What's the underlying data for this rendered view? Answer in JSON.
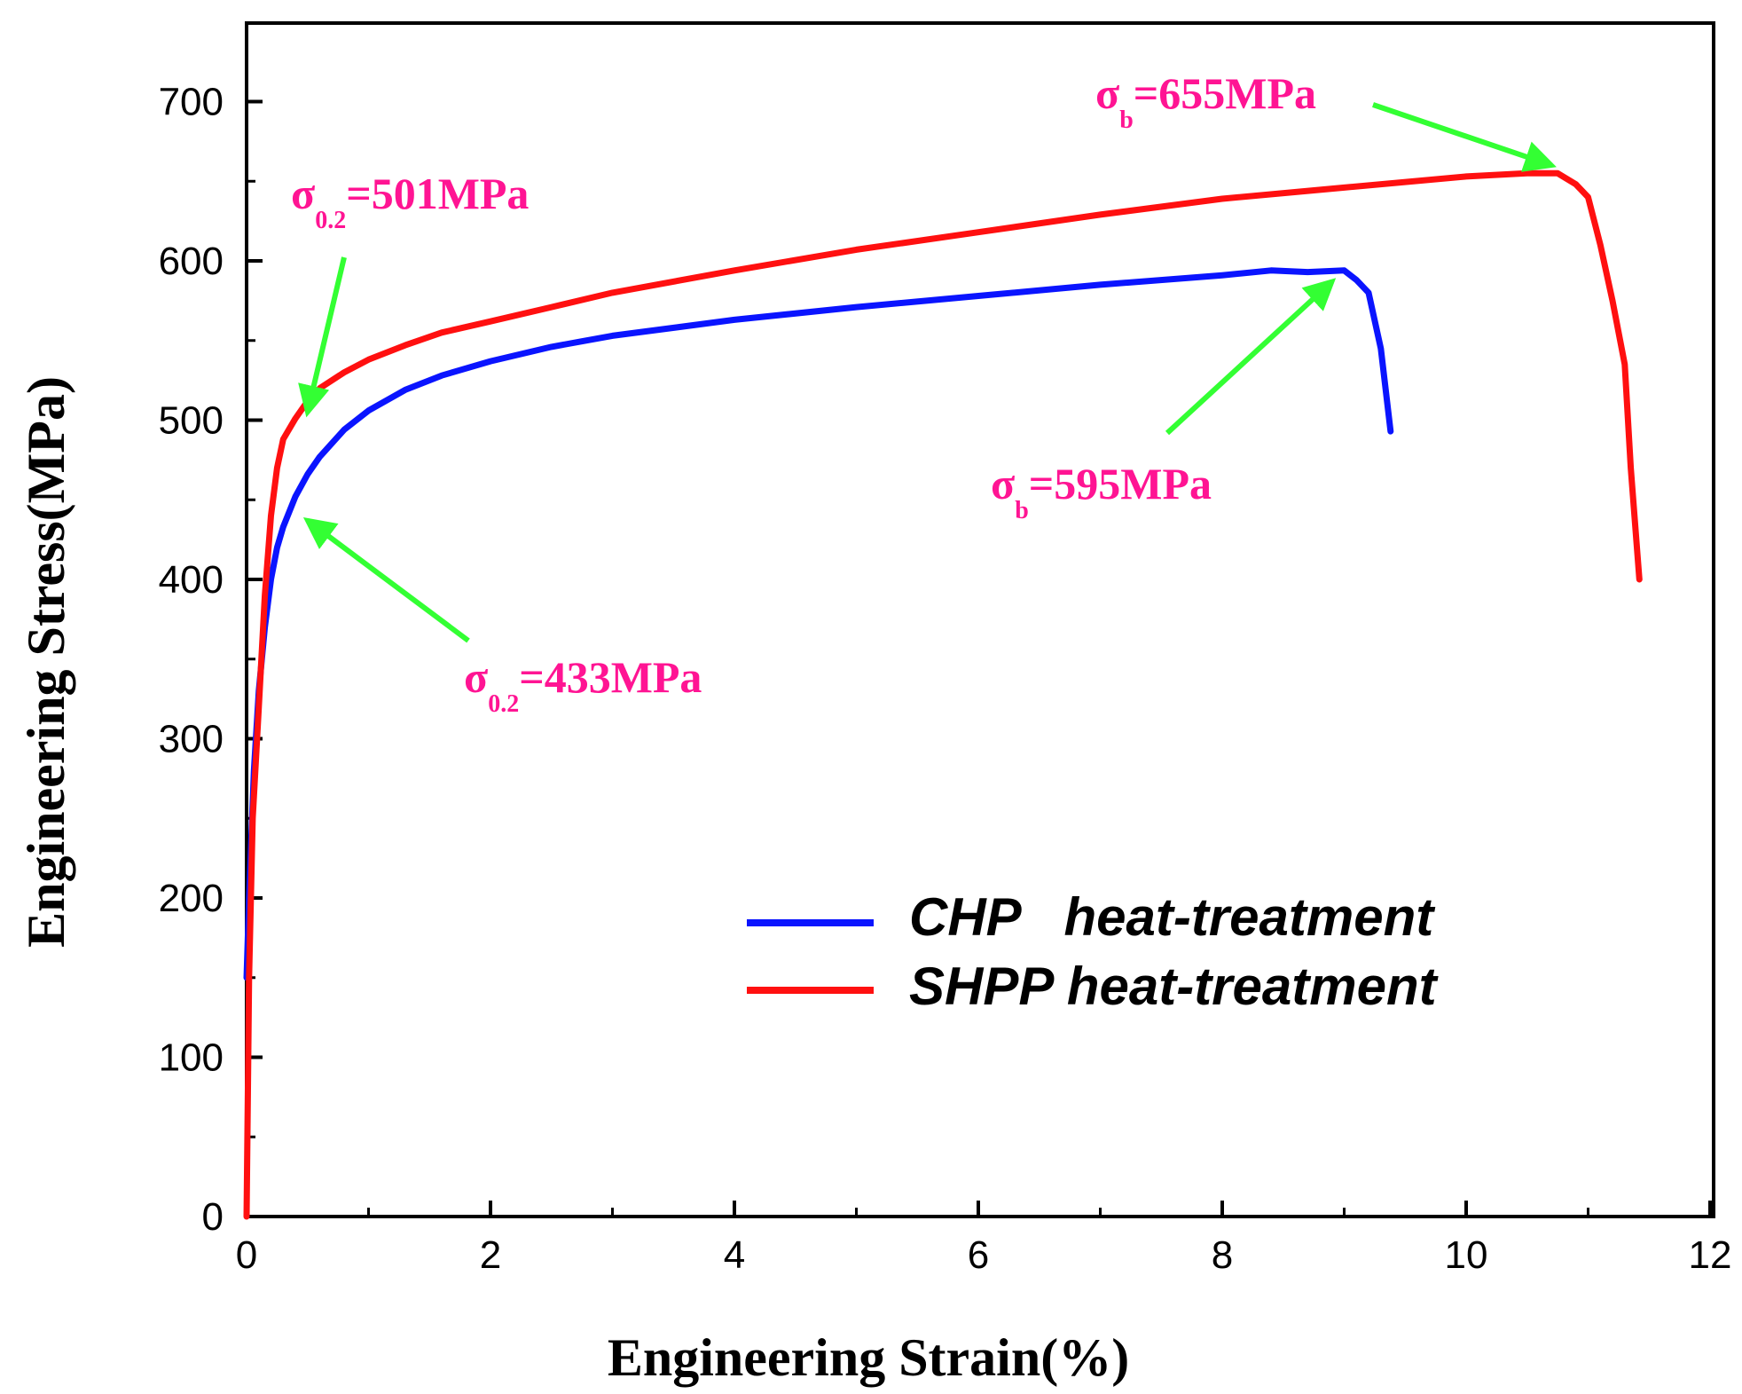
{
  "colors": {
    "chp": "#0a14ff",
    "shpp": "#ff1010",
    "annotation_text": "#ff1493",
    "arrow": "#33ff33",
    "axis": "#000000"
  },
  "chart_data": {
    "type": "line",
    "xlabel": "Engineering Strain(%)",
    "ylabel": "Engineering Stress(MPa)",
    "xlim": [
      0,
      12
    ],
    "ylim": [
      0,
      750
    ],
    "xticks": [
      "0",
      "2",
      "4",
      "6",
      "8",
      "10",
      "12"
    ],
    "yticks": [
      "0",
      "100",
      "200",
      "300",
      "400",
      "500",
      "600",
      "700"
    ],
    "legend_position": "lower-right",
    "series": [
      {
        "name": "CHP   heat-treatment",
        "color": "#0a14ff",
        "x": [
          0.0,
          0.02,
          0.06,
          0.1,
          0.15,
          0.2,
          0.25,
          0.3,
          0.4,
          0.5,
          0.6,
          0.8,
          1.0,
          1.3,
          1.6,
          2.0,
          2.5,
          3.0,
          4.0,
          5.0,
          6.0,
          7.0,
          8.0,
          8.4,
          8.7,
          9.0,
          9.1,
          9.2,
          9.3,
          9.38
        ],
        "y": [
          150,
          200,
          280,
          330,
          370,
          400,
          420,
          433,
          452,
          466,
          477,
          494,
          506,
          519,
          528,
          537,
          546,
          553,
          563,
          571,
          578,
          585,
          591,
          594,
          593,
          594,
          588,
          580,
          545,
          493
        ]
      },
      {
        "name": "SHPP heat-treatment",
        "color": "#ff1010",
        "x": [
          0.0,
          0.02,
          0.05,
          0.1,
          0.15,
          0.2,
          0.25,
          0.3,
          0.4,
          0.5,
          0.6,
          0.8,
          1.0,
          1.3,
          1.6,
          2.0,
          2.5,
          3.0,
          4.0,
          5.0,
          6.0,
          7.0,
          8.0,
          9.0,
          10.0,
          10.5,
          10.75,
          10.9,
          11.0,
          11.1,
          11.2,
          11.3,
          11.35,
          11.42
        ],
        "y": [
          0,
          150,
          250,
          320,
          390,
          440,
          470,
          488,
          501,
          512,
          520,
          530,
          538,
          547,
          555,
          562,
          571,
          580,
          594,
          607,
          618,
          629,
          639,
          646,
          653,
          655,
          655,
          648,
          640,
          610,
          575,
          535,
          470,
          400
        ]
      }
    ],
    "annotations": [
      {
        "main": "σ",
        "sub": "b",
        "rest": "=655MPa",
        "point": [
          10.7,
          660
        ]
      },
      {
        "main": "σ",
        "sub": "0.2",
        "rest": "=501MPa",
        "point": [
          0.5,
          505
        ]
      },
      {
        "main": "σ",
        "sub": "b",
        "rest": "=595MPa",
        "point": [
          8.9,
          587
        ]
      },
      {
        "main": "σ",
        "sub": "0.2",
        "rest": "=433MPa",
        "point": [
          0.5,
          437
        ]
      }
    ]
  }
}
